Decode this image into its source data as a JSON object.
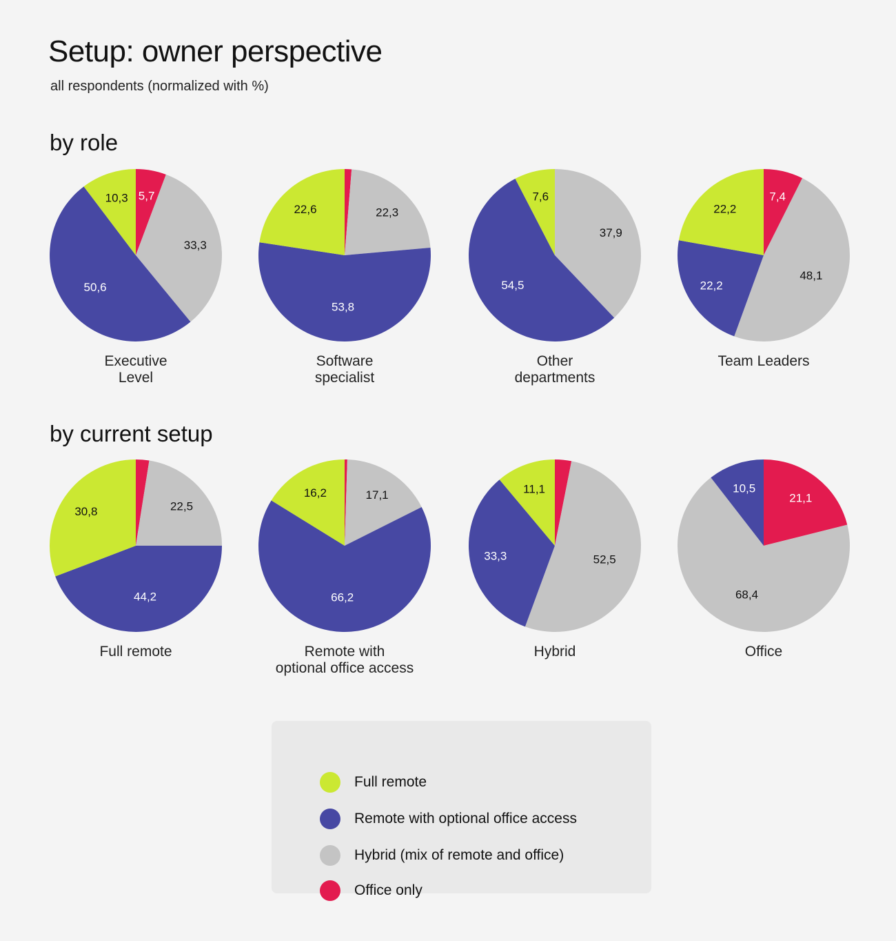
{
  "header": {
    "title": "Setup: owner perspective",
    "subtitle": "all respondents (normalized with %)"
  },
  "sections": {
    "by_role": "by role",
    "by_current_setup": "by current setup"
  },
  "colors": {
    "full_remote": "#cbe832",
    "remote_optional": "#4748a3",
    "hybrid": "#c4c4c4",
    "office_only": "#e31b4f"
  },
  "legend": [
    {
      "key": "full_remote",
      "label": "Full remote"
    },
    {
      "key": "remote_optional",
      "label": "Remote with optional office access"
    },
    {
      "key": "hybrid",
      "label": "Hybrid (mix of remote and office)"
    },
    {
      "key": "office_only",
      "label": "Office only"
    }
  ],
  "chart_data": [
    {
      "type": "pie",
      "group": "by role",
      "title": [
        "Executive",
        "Level"
      ],
      "slices": [
        {
          "key": "office_only",
          "value": 5.7,
          "label": "5,7"
        },
        {
          "key": "hybrid",
          "value": 33.3,
          "label": "33,3"
        },
        {
          "key": "remote_optional",
          "value": 50.6,
          "label": "50,6"
        },
        {
          "key": "full_remote",
          "value": 10.3,
          "label": "10,3"
        }
      ]
    },
    {
      "type": "pie",
      "group": "by role",
      "title": [
        "Software",
        "specialist"
      ],
      "slices": [
        {
          "key": "office_only",
          "value": 1.3,
          "label": ""
        },
        {
          "key": "hybrid",
          "value": 22.3,
          "label": "22,3"
        },
        {
          "key": "remote_optional",
          "value": 53.8,
          "label": "53,8"
        },
        {
          "key": "full_remote",
          "value": 22.6,
          "label": "22,6"
        }
      ]
    },
    {
      "type": "pie",
      "group": "by role",
      "title": [
        "Other",
        "departments"
      ],
      "slices": [
        {
          "key": "office_only",
          "value": 0,
          "label": ""
        },
        {
          "key": "hybrid",
          "value": 37.9,
          "label": "37,9"
        },
        {
          "key": "remote_optional",
          "value": 54.5,
          "label": "54,5"
        },
        {
          "key": "full_remote",
          "value": 7.6,
          "label": "7,6"
        }
      ]
    },
    {
      "type": "pie",
      "group": "by role",
      "title": [
        "Team Leaders"
      ],
      "slices": [
        {
          "key": "office_only",
          "value": 7.4,
          "label": "7,4"
        },
        {
          "key": "hybrid",
          "value": 48.1,
          "label": "48,1"
        },
        {
          "key": "remote_optional",
          "value": 22.2,
          "label": "22,2"
        },
        {
          "key": "full_remote",
          "value": 22.2,
          "label": "22,2"
        }
      ]
    },
    {
      "type": "pie",
      "group": "by current setup",
      "title": [
        "Full remote"
      ],
      "slices": [
        {
          "key": "office_only",
          "value": 2.5,
          "label": ""
        },
        {
          "key": "hybrid",
          "value": 22.5,
          "label": "22,5"
        },
        {
          "key": "remote_optional",
          "value": 44.2,
          "label": "44,2"
        },
        {
          "key": "full_remote",
          "value": 30.8,
          "label": "30,8"
        }
      ]
    },
    {
      "type": "pie",
      "group": "by current setup",
      "title": [
        "Remote with",
        "optional office access"
      ],
      "slices": [
        {
          "key": "office_only",
          "value": 0.5,
          "label": ""
        },
        {
          "key": "hybrid",
          "value": 17.1,
          "label": "17,1"
        },
        {
          "key": "remote_optional",
          "value": 66.2,
          "label": "66,2"
        },
        {
          "key": "full_remote",
          "value": 16.2,
          "label": "16,2"
        }
      ]
    },
    {
      "type": "pie",
      "group": "by current setup",
      "title": [
        "Hybrid"
      ],
      "slices": [
        {
          "key": "office_only",
          "value": 3.1,
          "label": ""
        },
        {
          "key": "hybrid",
          "value": 52.5,
          "label": "52,5"
        },
        {
          "key": "remote_optional",
          "value": 33.3,
          "label": "33,3"
        },
        {
          "key": "full_remote",
          "value": 11.1,
          "label": "11,1"
        }
      ]
    },
    {
      "type": "pie",
      "group": "by current setup",
      "title": [
        "Office"
      ],
      "slices": [
        {
          "key": "office_only",
          "value": 21.1,
          "label": "21,1"
        },
        {
          "key": "hybrid",
          "value": 68.4,
          "label": "68,4"
        },
        {
          "key": "remote_optional",
          "value": 10.5,
          "label": "10,5"
        },
        {
          "key": "full_remote",
          "value": 0,
          "label": ""
        }
      ]
    }
  ]
}
